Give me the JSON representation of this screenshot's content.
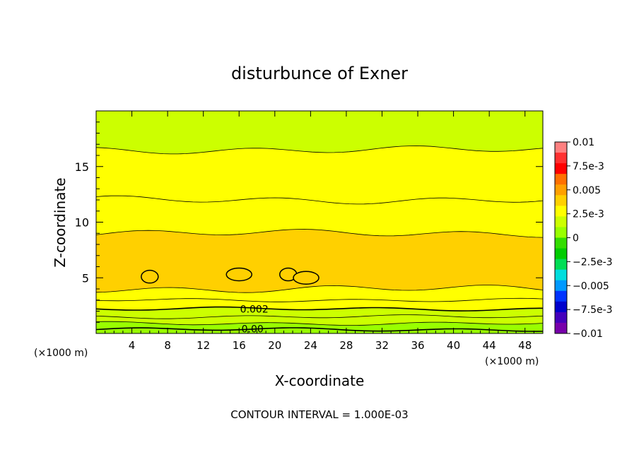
{
  "chart_data": {
    "type": "heatmap",
    "title": "disturbunce of Exner",
    "xlabel": "X-coordinate",
    "ylabel": "Z-coordinate",
    "x_unit": "(×1000 m)",
    "footer": "CONTOUR INTERVAL = 1.000E-03",
    "xlim": [
      0,
      50
    ],
    "ylim": [
      0,
      20
    ],
    "x_ticks": [
      4,
      8,
      12,
      16,
      20,
      24,
      28,
      32,
      36,
      40,
      44,
      48
    ],
    "y_ticks": [
      5,
      10,
      15
    ],
    "contour_interval": 0.001,
    "contour_labels": [
      {
        "text": "0.002",
        "x": 17.7,
        "z": 2.2
      },
      {
        "text": "0.00",
        "x": 17.5,
        "z": 0.4
      }
    ],
    "levels": [
      {
        "z_top": 0.35,
        "value": 0.0005
      },
      {
        "z_top": 0.9,
        "value": 0.001
      },
      {
        "z_top": 1.5,
        "value": 0.0015
      },
      {
        "z_top": 2.2,
        "value": 0.002
      },
      {
        "z_top": 3.0,
        "value": 0.0025
      },
      {
        "z_top": 4.0,
        "value": 0.003
      },
      {
        "z_top": 9.0,
        "value": 0.0035
      },
      {
        "z_top": 12.0,
        "value": 0.003
      },
      {
        "z_top": 16.5,
        "value": 0.0025
      },
      {
        "z_top": 20.0,
        "value": 0.002
      }
    ],
    "blobs": [
      {
        "x": 6.0,
        "z": 5.1,
        "value": 0.004
      },
      {
        "x": 16.0,
        "z": 5.3,
        "value": 0.004
      },
      {
        "x": 21.5,
        "z": 5.3,
        "value": 0.004
      },
      {
        "x": 23.5,
        "z": 5.0,
        "value": 0.004
      }
    ],
    "colorbar": {
      "labels": [
        "0.01",
        "7.5e-3",
        "0.005",
        "2.5e-3",
        "0",
        "−2.5e-3",
        "−0.005",
        "−7.5e-3",
        "−0.01"
      ],
      "range": [
        -0.01,
        0.01
      ],
      "colors": [
        "#ff8080",
        "#ff3030",
        "#ff0000",
        "#ff7000",
        "#ffa000",
        "#ffd000",
        "#ffff00",
        "#ccff00",
        "#99ff00",
        "#33dd00",
        "#00cc00",
        "#00dd55",
        "#00dddd",
        "#0099ff",
        "#0033ff",
        "#0000cc",
        "#4400bb",
        "#7700aa"
      ]
    }
  }
}
